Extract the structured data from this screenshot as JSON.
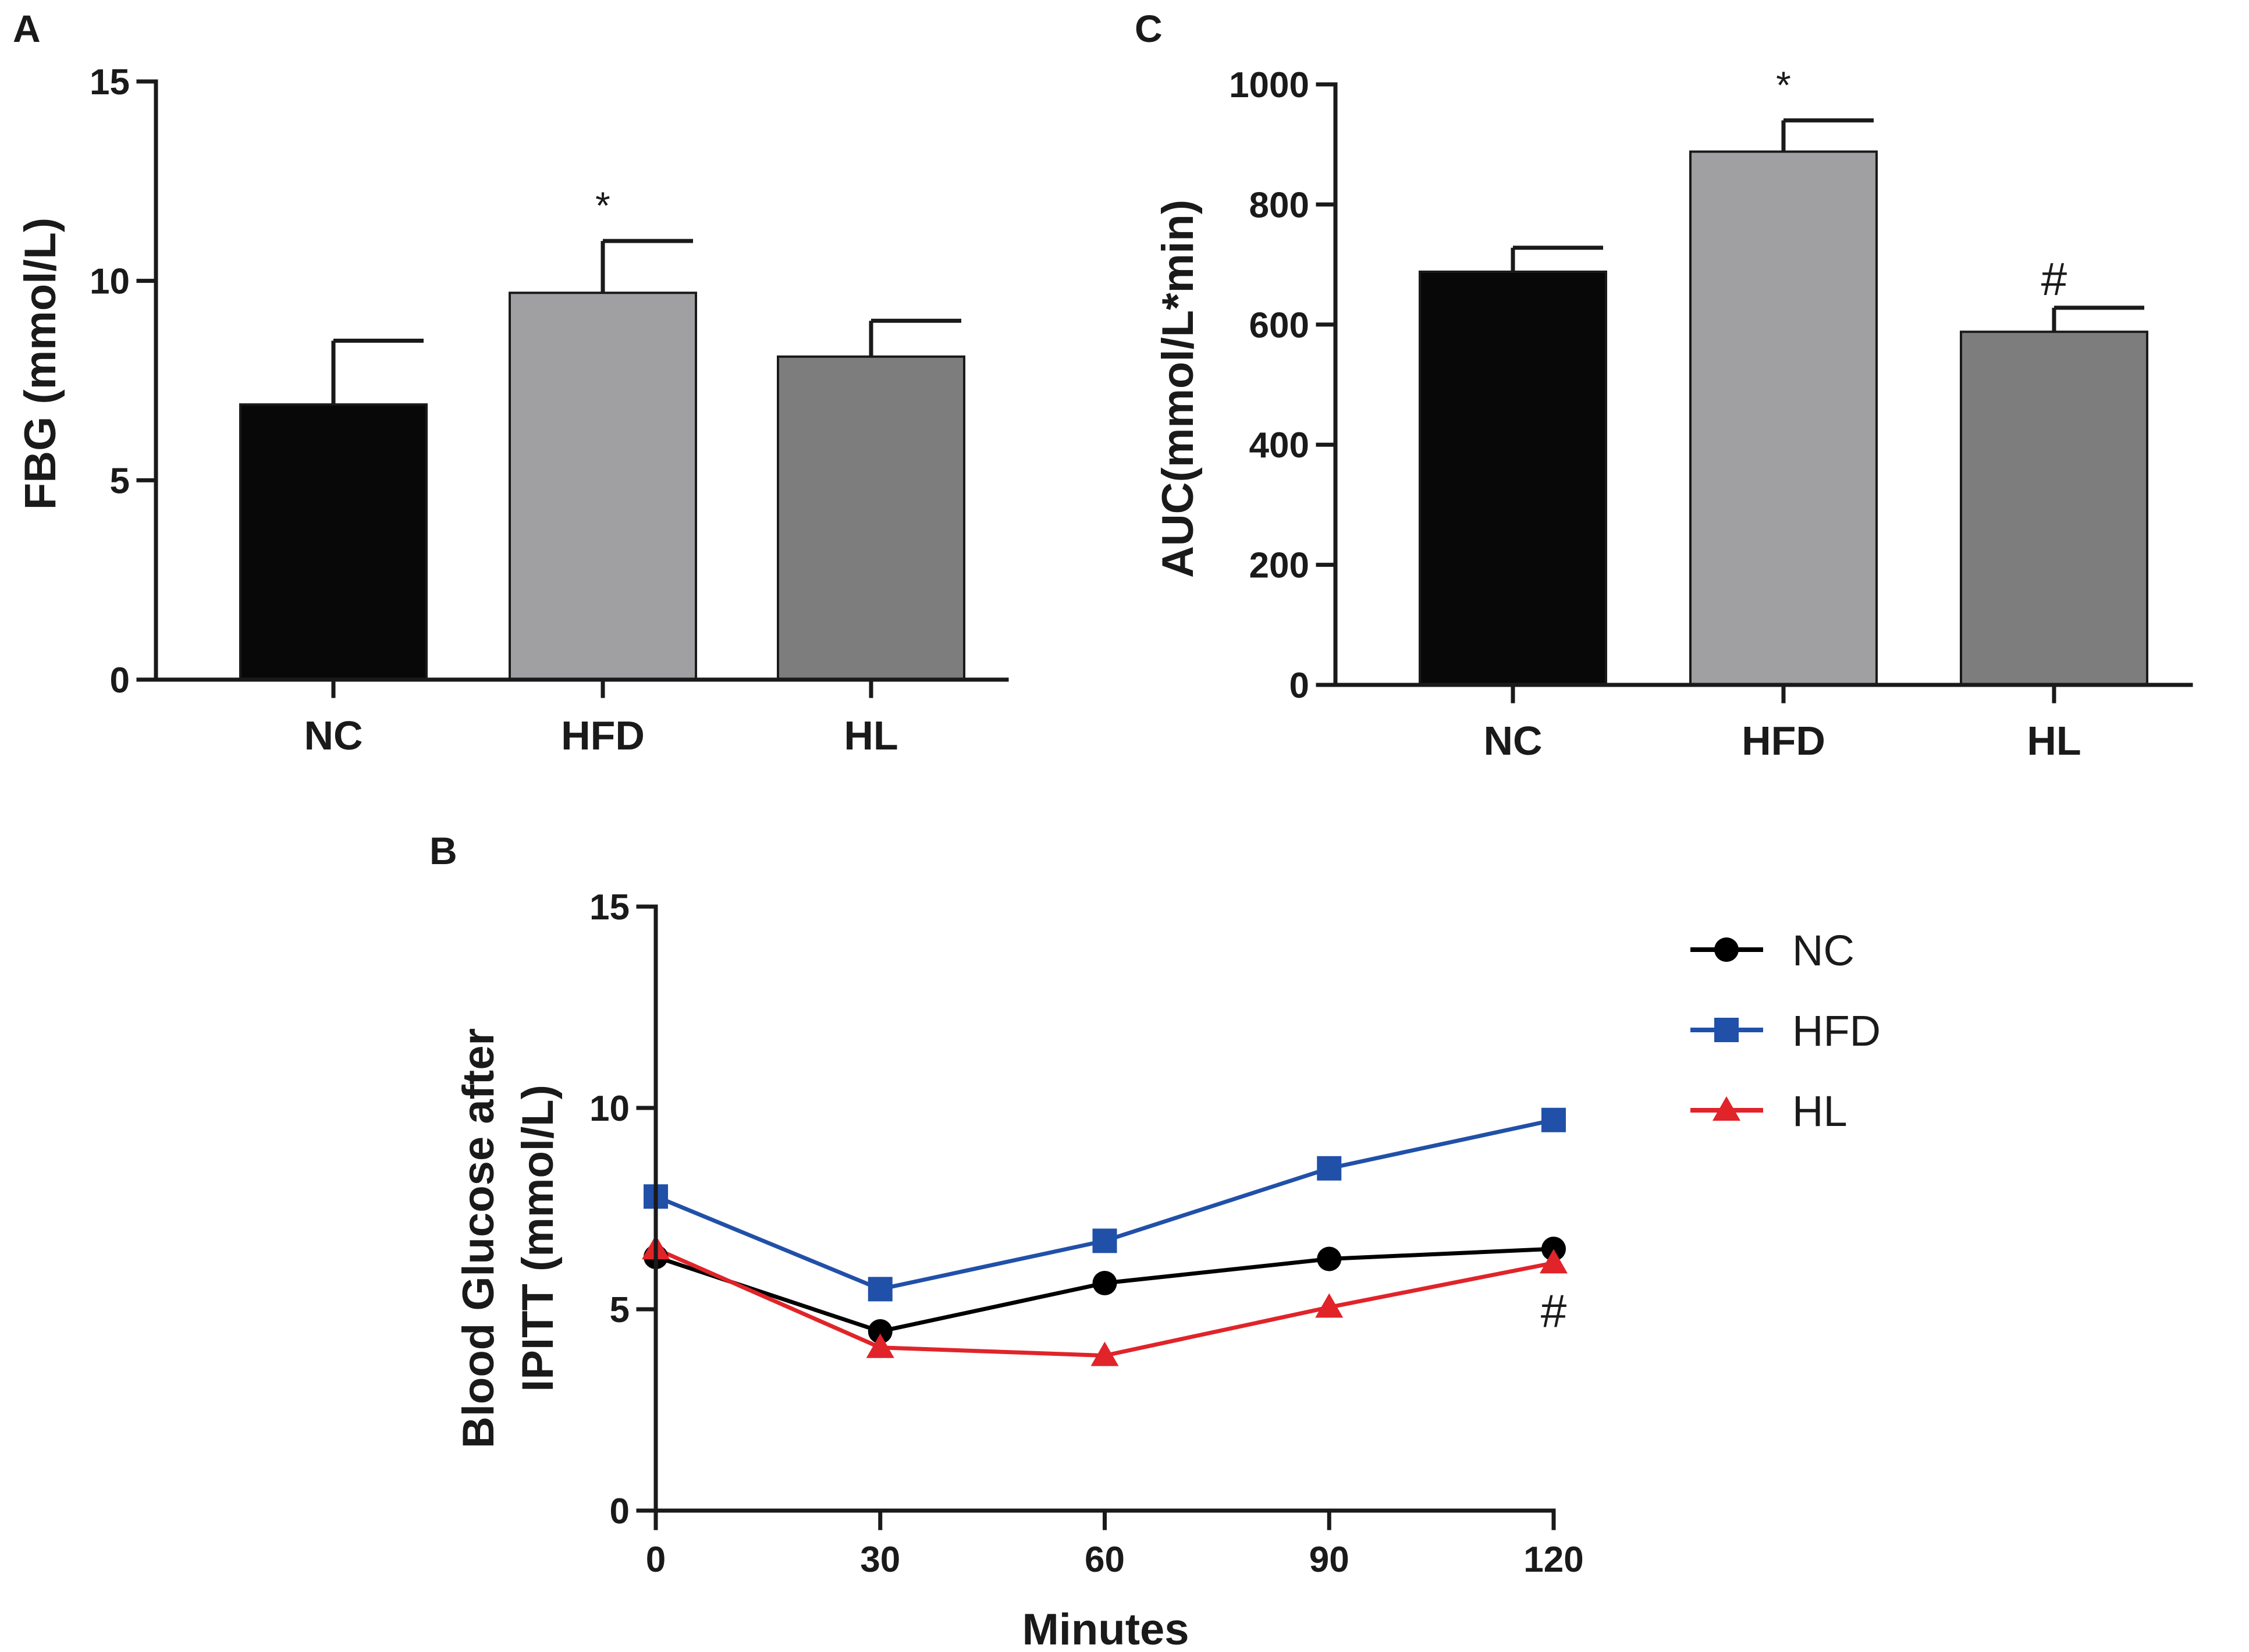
{
  "chart_data": [
    {
      "panel": "A",
      "type": "bar",
      "categories": [
        "NC",
        "HFD",
        "HL"
      ],
      "values": [
        6.9,
        9.7,
        8.1
      ],
      "errors": [
        1.6,
        1.3,
        0.9
      ],
      "annotations": [
        "",
        "*",
        ""
      ],
      "colors": [
        "#080808",
        "#a0a0a2",
        "#7d7d7d"
      ],
      "ylabel": "FBG (mmol/L)",
      "xlabel": "",
      "ylim": [
        0,
        15
      ],
      "yticks": [
        "0",
        "5",
        "10",
        "15"
      ]
    },
    {
      "panel": "C",
      "type": "bar",
      "categories": [
        "NC",
        "HFD",
        "HL"
      ],
      "values": [
        688,
        888,
        588
      ],
      "errors": [
        40,
        52,
        40
      ],
      "annotations": [
        "",
        "*",
        "#"
      ],
      "colors": [
        "#080808",
        "#a0a0a2",
        "#7d7d7d"
      ],
      "ylabel": "AUC(mmol/L*min)",
      "xlabel": "",
      "ylim": [
        0,
        1000
      ],
      "yticks": [
        "0",
        "200",
        "400",
        "600",
        "800",
        "1000"
      ]
    },
    {
      "panel": "B",
      "type": "line",
      "x": [
        0,
        30,
        60,
        90,
        120
      ],
      "xticks": [
        "0",
        "30",
        "60",
        "90",
        "120"
      ],
      "series": [
        {
          "name": "NC",
          "values": [
            6.3,
            4.45,
            5.65,
            6.25,
            6.5
          ],
          "color": "#000000",
          "marker": "circle"
        },
        {
          "name": "HFD",
          "values": [
            7.8,
            5.5,
            6.7,
            8.5,
            9.7
          ],
          "color": "#2150a8",
          "marker": "square"
        },
        {
          "name": "HL",
          "values": [
            6.5,
            4.05,
            3.85,
            5.05,
            6.15
          ],
          "color": "#e0242a",
          "marker": "triangle"
        }
      ],
      "annotations": [
        {
          "x": 120,
          "text": "#"
        }
      ],
      "ylabel_line1": "Blood Glucose after",
      "ylabel_line2": "IPITT (mmol/L)",
      "xlabel": "Minutes",
      "ylim": [
        0,
        15
      ],
      "xlim": [
        0,
        120
      ],
      "yticks": [
        "0",
        "5",
        "10",
        "15"
      ],
      "legend": "right"
    }
  ]
}
